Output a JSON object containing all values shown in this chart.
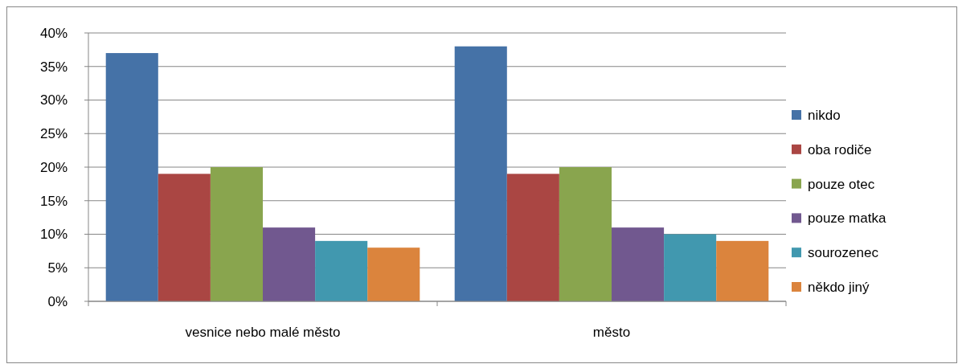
{
  "chart_data": {
    "type": "bar",
    "categories": [
      "vesnice nebo malé město",
      "město"
    ],
    "series": [
      {
        "name": "nikdo",
        "color": "#4572a7",
        "values": [
          37,
          38
        ]
      },
      {
        "name": "oba rodiče",
        "color": "#aa4643",
        "values": [
          19,
          19
        ]
      },
      {
        "name": "pouze otec",
        "color": "#89a54e",
        "values": [
          20,
          20
        ]
      },
      {
        "name": "pouze matka",
        "color": "#71588f",
        "values": [
          11,
          11
        ]
      },
      {
        "name": "sourozenec",
        "color": "#4198af",
        "values": [
          9,
          10
        ]
      },
      {
        "name": "někdo jiný",
        "color": "#db843d",
        "values": [
          8,
          9
        ]
      }
    ],
    "ylim": [
      0,
      40
    ],
    "yticks": [
      {
        "value": 0,
        "label": "0%"
      },
      {
        "value": 5,
        "label": "5%"
      },
      {
        "value": 10,
        "label": "10%"
      },
      {
        "value": 15,
        "label": "15%"
      },
      {
        "value": 20,
        "label": "20%"
      },
      {
        "value": 25,
        "label": "25%"
      },
      {
        "value": 30,
        "label": "30%"
      },
      {
        "value": 35,
        "label": "35%"
      },
      {
        "value": 40,
        "label": "40%"
      }
    ],
    "grid": "y",
    "legend": "right"
  }
}
